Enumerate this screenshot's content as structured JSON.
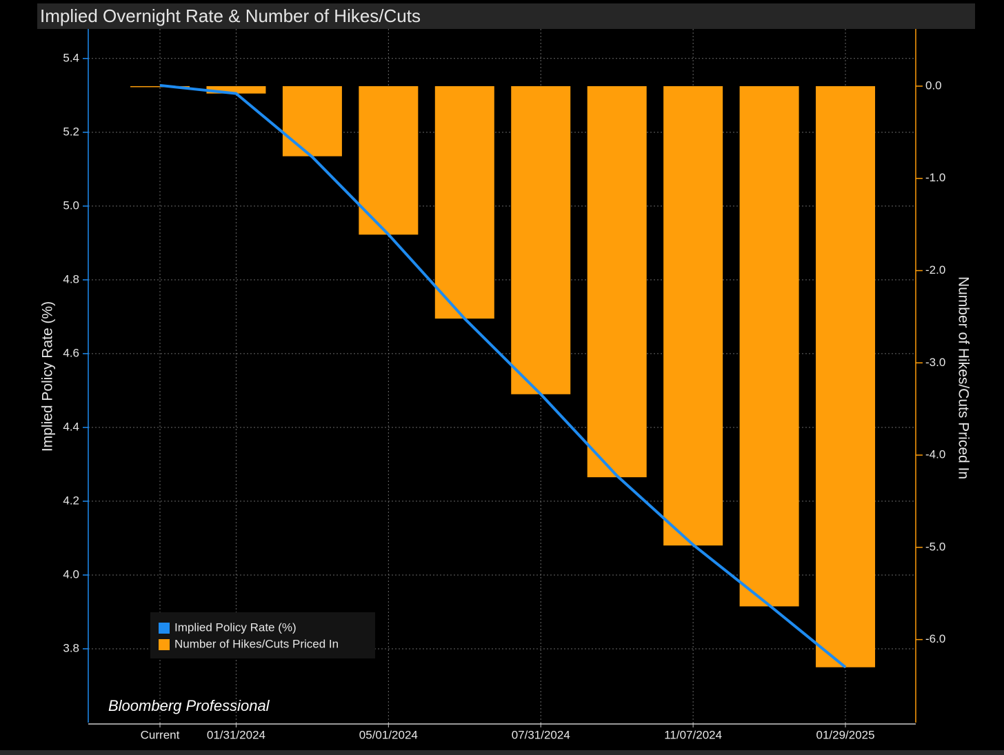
{
  "chart_data": {
    "type": "bar-line",
    "title": "Implied Overnight Rate & Number of Hikes/Cuts",
    "watermark": "Bloomberg Professional",
    "categories": [
      "Current",
      "01/31/2024",
      null,
      "05/01/2024",
      null,
      "07/31/2024",
      null,
      "11/07/2024",
      null,
      "01/29/2025"
    ],
    "y_label": "Implied Policy Rate (%)",
    "y2_label": "Number of Hikes/Cuts Priced In",
    "ylim": [
      3.6,
      5.48
    ],
    "yticks": [
      3.8,
      {
        "value": 4,
        "label": "4.0"
      },
      4.2,
      4.4,
      4.6,
      4.8,
      {
        "value": 5,
        "label": "5.0"
      },
      5.2,
      5.4
    ],
    "y2lim": [
      -6.9,
      0.62
    ],
    "y2ticks": [
      {
        "value": -6,
        "label": "-6.0"
      },
      {
        "value": -5,
        "label": "-5.0"
      },
      {
        "value": -4,
        "label": "-4.0"
      },
      {
        "value": -3,
        "label": "-3.0"
      },
      {
        "value": -2,
        "label": "-2.0"
      },
      {
        "value": -1,
        "label": "-1.0"
      },
      {
        "value": 0,
        "label": "0.0"
      }
    ],
    "grid": true,
    "legend": "lower left",
    "series": [
      {
        "name": "Implied Policy Rate (%)",
        "type": "line",
        "color": "#1e8bf0",
        "values": [
          5.327,
          5.305,
          5.133,
          4.923,
          4.695,
          4.49,
          4.269,
          4.082,
          3.918,
          3.75
        ]
      },
      {
        "name": "Number of Hikes/Cuts Priced In",
        "type": "bar",
        "axis": "y2",
        "color": "#ff9e0a",
        "values": [
          -0.01,
          -0.08,
          -0.76,
          -1.61,
          -2.52,
          -3.34,
          -4.24,
          -4.98,
          -5.64,
          -6.3
        ]
      }
    ]
  }
}
